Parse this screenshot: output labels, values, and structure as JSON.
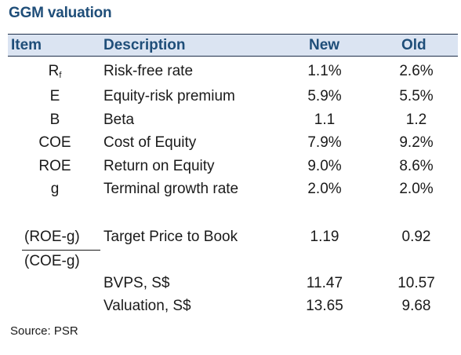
{
  "title": "GGM valuation",
  "header": {
    "item": "Item",
    "description": "Description",
    "new": "New",
    "old": "Old"
  },
  "rows": [
    {
      "item": "R",
      "item_sub": "f",
      "description": "Risk-free rate",
      "new": "1.1%",
      "old": "2.6%"
    },
    {
      "item": "E",
      "description": "Equity-risk premium",
      "new": "5.9%",
      "old": "5.5%"
    },
    {
      "item": "B",
      "description": "Beta",
      "new": "1.1",
      "old": "1.2"
    },
    {
      "item": "COE",
      "description": "Cost of Equity",
      "new": "7.9%",
      "old": "9.2%"
    },
    {
      "item": "ROE",
      "description": "Return on Equity",
      "new": "9.0%",
      "old": "8.6%"
    },
    {
      "item": "g",
      "description": "Terminal growth rate",
      "new": "2.0%",
      "old": "2.0%"
    }
  ],
  "ratio": {
    "numerator": "(ROE-g)",
    "denominator": "(COE-g)",
    "description": "Target Price to Book",
    "new": "1.19",
    "old": "0.92"
  },
  "bvps": {
    "description": "BVPS, S$",
    "new": "11.47",
    "old": "10.57"
  },
  "valuation": {
    "description": "Valuation, S$",
    "new": "13.65",
    "old": "9.68"
  },
  "source": "Source: PSR",
  "colors": {
    "title": "#1f4e79",
    "header_bg": "#dbe4f2"
  }
}
